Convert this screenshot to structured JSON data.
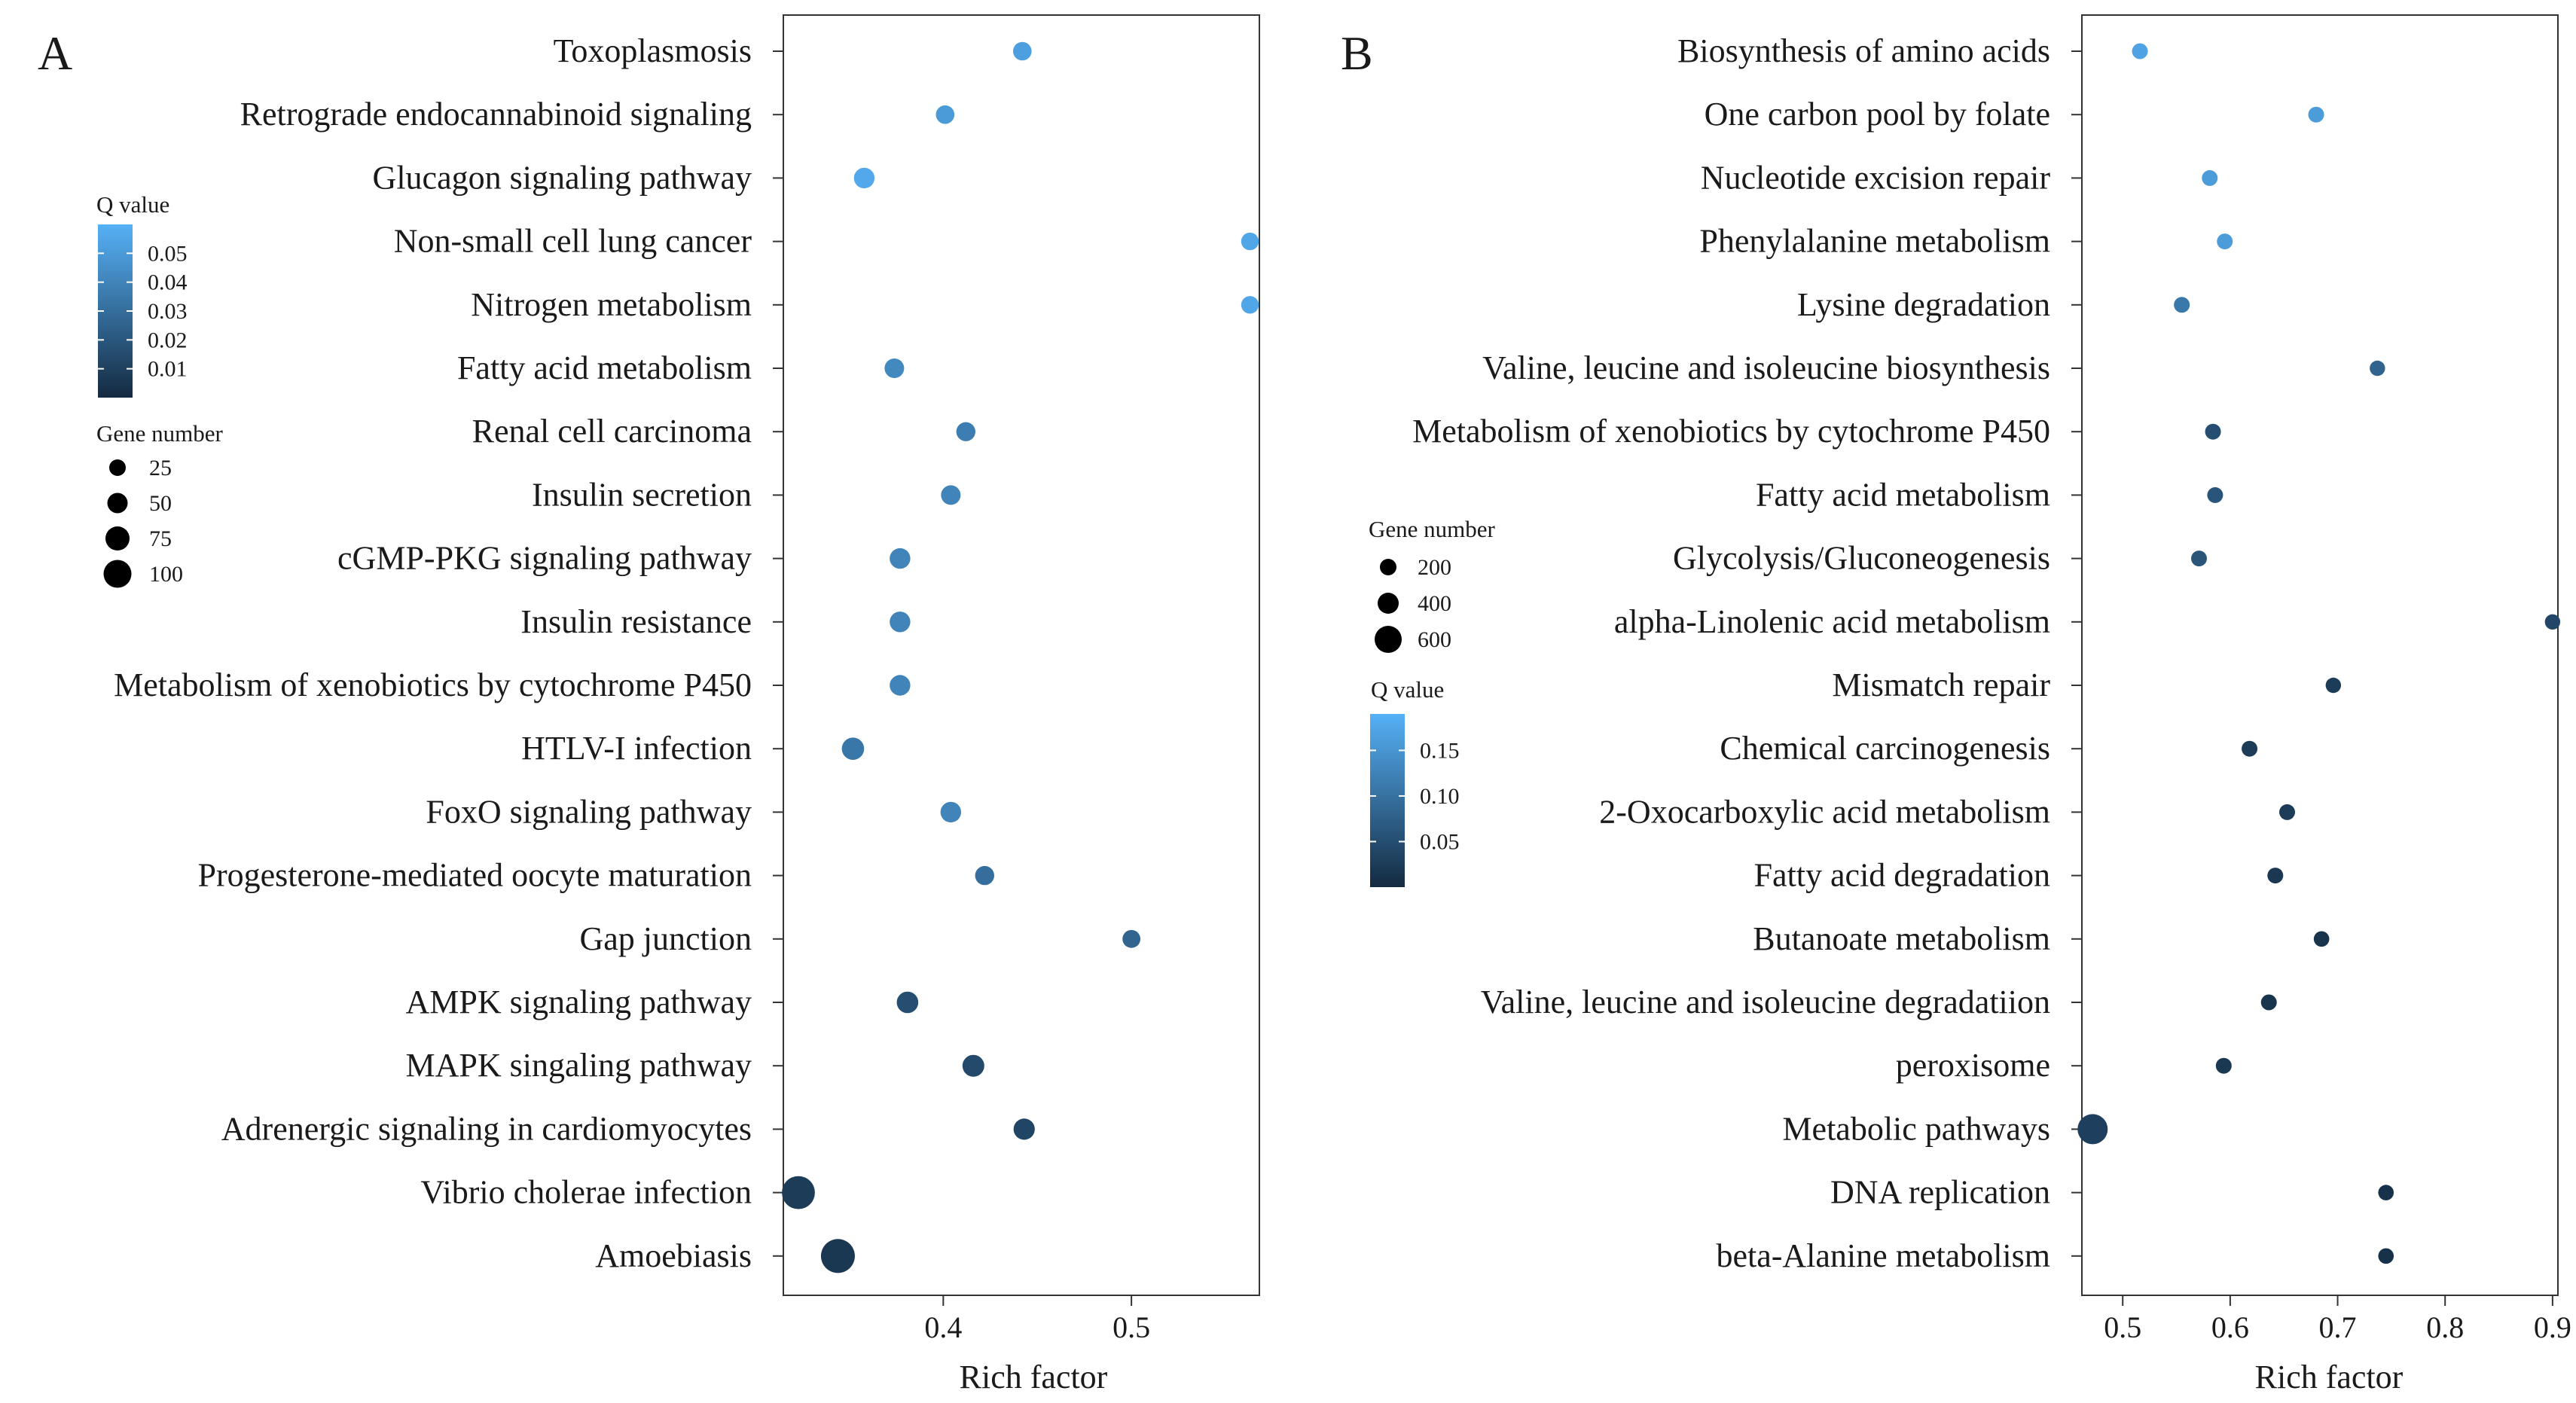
{
  "chart_data": [
    {
      "panel": "A",
      "type": "scatter",
      "xlabel": "Rich factor",
      "ylabel": "",
      "xlim": [
        0.315,
        0.568
      ],
      "xticks": [
        0.4,
        0.5
      ],
      "xtick_labels": [
        "0.4",
        "0.5"
      ],
      "grid": false,
      "legend_q": {
        "title": "Q value",
        "range": [
          0.0,
          0.06
        ],
        "ticks": [
          0.05,
          0.04,
          0.03,
          0.02,
          0.01
        ],
        "tick_labels": [
          "0.05",
          "0.04",
          "0.03",
          "0.02",
          "0.01"
        ],
        "placement": "left, upper"
      },
      "legend_gene": {
        "title": "Gene number",
        "values": [
          25,
          50,
          75,
          100
        ],
        "labels": [
          "25",
          "50",
          "75",
          "100"
        ],
        "placement": "left, middle"
      },
      "categories": [
        "Toxoplasmosis",
        "Retrograde endocannabinoid signaling",
        "Glucagon signaling pathway",
        "Non-small cell lung cancer",
        "Nitrogen metabolism",
        "Fatty acid metabolism",
        "Renal cell carcinoma",
        "Insulin secretion",
        "cGMP-PKG signaling pathway",
        "Insulin resistance",
        "Metabolism of xenobiotics by cytochrome P450",
        "HTLV-I infection",
        "FoxO signaling pathway",
        "Progesterone-mediated oocyte maturation",
        "Gap junction",
        "AMPK signaling pathway",
        "MAPK singaling pathway",
        "Adrenergic signaling in cardiomyocytes",
        "Vibrio cholerae infection",
        "Amoebiasis"
      ],
      "x": [
        0.442,
        0.401,
        0.358,
        0.563,
        0.563,
        0.374,
        0.412,
        0.404,
        0.377,
        0.377,
        0.377,
        0.352,
        0.404,
        0.422,
        0.5,
        0.381,
        0.416,
        0.443,
        0.323,
        0.344
      ],
      "q": [
        0.052,
        0.05,
        0.056,
        0.055,
        0.055,
        0.042,
        0.037,
        0.04,
        0.04,
        0.04,
        0.04,
        0.034,
        0.04,
        0.03,
        0.026,
        0.016,
        0.014,
        0.012,
        0.008,
        0.006
      ],
      "gene_number": [
        22,
        22,
        35,
        16,
        16,
        28,
        26,
        28,
        35,
        35,
        35,
        45,
        35,
        26,
        18,
        40,
        42,
        38,
        110,
        115
      ]
    },
    {
      "panel": "B",
      "type": "scatter",
      "xlabel": "Rich factor",
      "ylabel": "",
      "xlim": [
        0.462,
        0.905
      ],
      "xticks": [
        0.5,
        0.6,
        0.7,
        0.8,
        0.9
      ],
      "xtick_labels": [
        "0.5",
        "0.6",
        "0.7",
        "0.8",
        "0.9"
      ],
      "grid": false,
      "legend_gene": {
        "title": "Gene number",
        "values": [
          200,
          400,
          600
        ],
        "labels": [
          "200",
          "400",
          "600"
        ],
        "placement": "left, middle"
      },
      "legend_q": {
        "title": "Q value",
        "range": [
          0.0,
          0.19
        ],
        "ticks": [
          0.15,
          0.1,
          0.05
        ],
        "tick_labels": [
          "0.15",
          "0.10",
          "0.05"
        ],
        "placement": "left, lower"
      },
      "categories": [
        "Biosynthesis of amino acids",
        "One carbon pool by folate",
        "Nucleotide excision repair",
        "Phenylalanine metabolism",
        "Lysine degradation",
        "Valine, leucine and isoleucine biosynthesis",
        "Metabolism of xenobiotics by cytochrome P450",
        "Fatty acid metabolism",
        "Glycolysis/Gluconeogenesis",
        "alpha-Linolenic acid metabolism",
        "Mismatch repair",
        "Chemical carcinogenesis",
        "2-Oxocarboxylic acid metabolism",
        "Fatty acid degradation",
        "Butanoate metabolism",
        "Valine, leucine and isoleucine degradatiion",
        "peroxisome",
        "Metabolic pathways",
        "DNA replication",
        "beta-Alanine metabolism"
      ],
      "x": [
        0.516,
        0.68,
        0.581,
        0.595,
        0.555,
        0.737,
        0.584,
        0.586,
        0.571,
        0.9,
        0.696,
        0.618,
        0.653,
        0.642,
        0.685,
        0.636,
        0.594,
        0.472,
        0.745,
        0.745
      ],
      "q": [
        0.17,
        0.16,
        0.16,
        0.16,
        0.11,
        0.08,
        0.05,
        0.06,
        0.06,
        0.04,
        0.025,
        0.025,
        0.025,
        0.02,
        0.015,
        0.015,
        0.02,
        0.03,
        0.01,
        0.01
      ],
      "gene_number": [
        80,
        80,
        80,
        80,
        80,
        60,
        80,
        80,
        80,
        60,
        60,
        80,
        80,
        80,
        70,
        80,
        80,
        650,
        70,
        70
      ]
    }
  ],
  "panels": {
    "a_label": "A",
    "b_label": "B"
  },
  "colors": {
    "low_q": "#142a40",
    "high_q": "#56b1f7",
    "axis": "#333333",
    "text": "#1a1a1a"
  }
}
